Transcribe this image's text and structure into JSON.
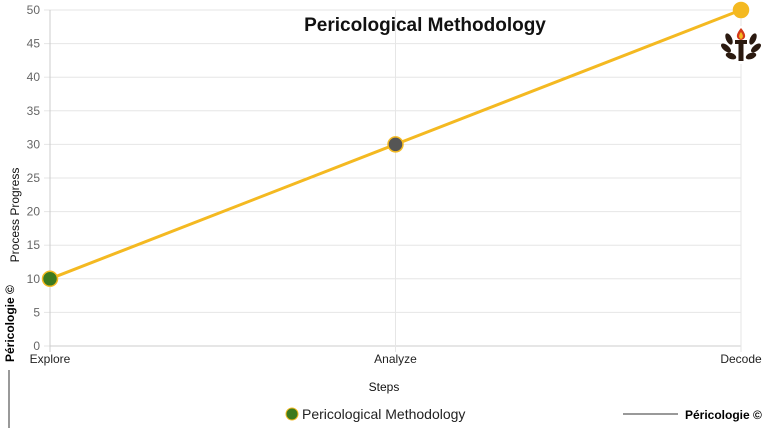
{
  "chart_data": {
    "type": "line",
    "title": "Pericological Methodology",
    "xlabel": "Steps",
    "ylabel": "Process Progress",
    "categories": [
      "Explore",
      "Analyze",
      "Decode"
    ],
    "series": [
      {
        "name": "Pericological Methodology",
        "values": [
          10,
          30,
          50
        ],
        "line_color": "#F4B921",
        "point_colors": [
          "#3C7A1E",
          "#555555",
          "#F4B921"
        ]
      }
    ],
    "ylim": [
      0,
      50
    ],
    "yticks": [
      0,
      5,
      10,
      15,
      20,
      25,
      30,
      35,
      40,
      45,
      50
    ],
    "grid": true,
    "legend": "bottom-center"
  },
  "watermark": {
    "vertical_text": "Péricologie ©",
    "bottom_text": "Péricologie ©"
  },
  "logo": {
    "icon": "torch-laurel-emblem-icon"
  },
  "colors": {
    "grid": "#e6e6e6",
    "axis": "#cccccc",
    "line": "#F4B921"
  }
}
